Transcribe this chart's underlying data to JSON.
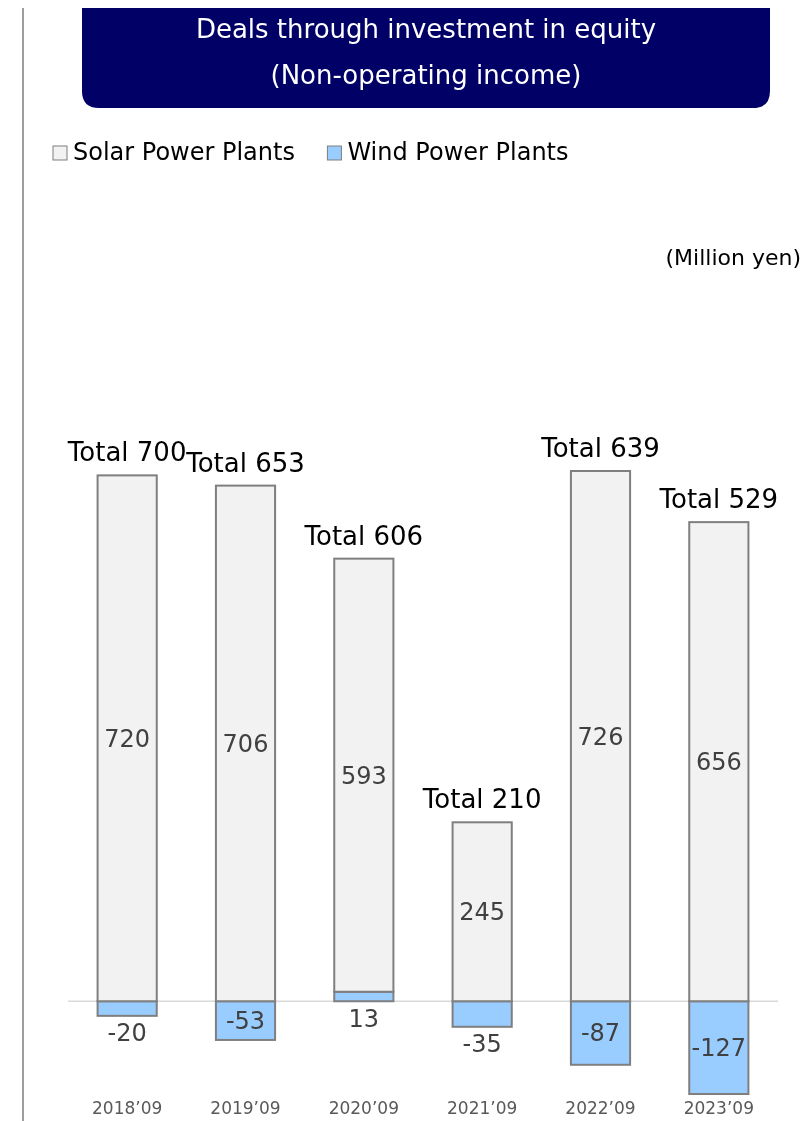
{
  "chart_data": {
    "type": "bar",
    "title": "Deals through investment in equity",
    "subtitle": "(Non-operating income)",
    "categories": [
      "2018’09",
      "2019’09",
      "2020’09",
      "2021’09",
      "2022’09",
      "2023’09"
    ],
    "stacked": true,
    "data_labels": true,
    "legend": "top left",
    "series": [
      {
        "name": "Wind Power Plants",
        "color": "#99ccff",
        "values": [
          -20,
          -53,
          13,
          -35,
          -87,
          -127
        ]
      },
      {
        "name": "Solar Power Plants",
        "color": "#f2f2f2",
        "values": [
          720,
          706,
          593,
          245,
          726,
          656
        ]
      }
    ],
    "totals": [
      "Total 700",
      "Total 653",
      "Total 606",
      "Total 210",
      "Total 639",
      "Total 529"
    ],
    "annotations": [
      "(Million yen)"
    ]
  }
}
